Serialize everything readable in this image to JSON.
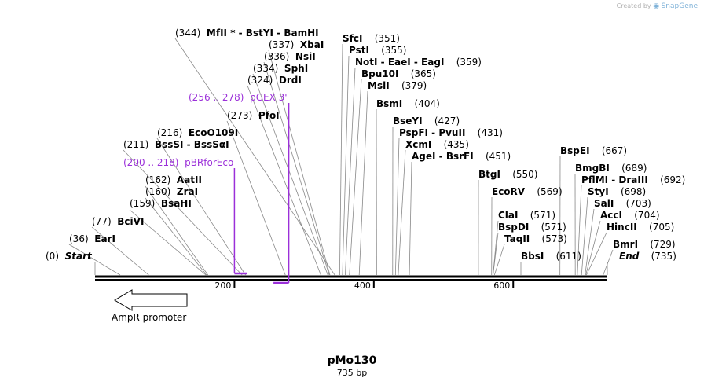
{
  "credit": {
    "prefix": "Created by",
    "brand": "SnapGene",
    "icon": "snapgene-logo-icon"
  },
  "plasmid": {
    "name": "pMo130",
    "size_label": "735 bp",
    "length": 735
  },
  "ruler": {
    "ticks": [
      {
        "value": 200,
        "label": "200"
      },
      {
        "value": 400,
        "label": "400"
      },
      {
        "value": 600,
        "label": "600"
      }
    ]
  },
  "promoter": {
    "name": "AmpR promoter",
    "start": 1,
    "end": 105,
    "direction": "reverse"
  },
  "features": [
    {
      "name": "pGEX 3'",
      "range_label": "(256 .. 278)",
      "start": 256,
      "end": 278,
      "color": "#9b30d9"
    },
    {
      "name": "pBRforEco",
      "range_label": "(200 .. 218)",
      "start": 200,
      "end": 218,
      "color": "#9b30d9"
    }
  ],
  "sites": [
    {
      "label": "Start",
      "pos_label": "(0)",
      "pos": 0,
      "type": "end"
    },
    {
      "label": "EarI",
      "pos_label": "(36)",
      "pos": 36
    },
    {
      "label": "BciVI",
      "pos_label": "(77)",
      "pos": 77
    },
    {
      "label": "BsaHI",
      "pos_label": "(159)",
      "pos": 159
    },
    {
      "label": "ZraI",
      "pos_label": "(160)",
      "pos": 160
    },
    {
      "label": "AatII",
      "pos_label": "(162)",
      "pos": 162
    },
    {
      "label": "BssSI  -  BssSαI",
      "pos_label": "(211)",
      "pos": 211
    },
    {
      "label": "EcoO109I",
      "pos_label": "(216)",
      "pos": 216
    },
    {
      "label": "PfoI",
      "pos_label": "(273)",
      "pos": 273
    },
    {
      "label": "DrdI",
      "pos_label": "(324)",
      "pos": 324
    },
    {
      "label": "SphI",
      "pos_label": "(334)",
      "pos": 334
    },
    {
      "label": "NsiI",
      "pos_label": "(336)",
      "pos": 336
    },
    {
      "label": "XbaI",
      "pos_label": "(337)",
      "pos": 337
    },
    {
      "label": "MfII *  -  BstYI   -  BamHI",
      "pos_label": "(344)",
      "pos": 344
    },
    {
      "label": "SfcI",
      "pos_label": "(351)",
      "pos": 351
    },
    {
      "label": "PstI",
      "pos_label": "(355)",
      "pos": 355
    },
    {
      "label": "NotI  -  EaeI   -  EagI",
      "pos_label": "(359)",
      "pos": 359
    },
    {
      "label": "Bpu10I",
      "pos_label": "(365)",
      "pos": 365
    },
    {
      "label": "MslI",
      "pos_label": "(379)",
      "pos": 379
    },
    {
      "label": "BsmI",
      "pos_label": "(404)",
      "pos": 404
    },
    {
      "label": "BseYI",
      "pos_label": "(427)",
      "pos": 427
    },
    {
      "label": "PspFI  -  PvuII",
      "pos_label": "(431)",
      "pos": 431
    },
    {
      "label": "XcmI",
      "pos_label": "(435)",
      "pos": 435
    },
    {
      "label": "AgeI  -  BsrFI",
      "pos_label": "(451)",
      "pos": 451
    },
    {
      "label": "BtgI",
      "pos_label": "(550)",
      "pos": 550
    },
    {
      "label": "EcoRV",
      "pos_label": "(569)",
      "pos": 569
    },
    {
      "label": "ClaI",
      "pos_label": "(571)",
      "pos": 571
    },
    {
      "label": "BspDI",
      "pos_label": "(571)",
      "pos": 571
    },
    {
      "label": "TaqII",
      "pos_label": "(573)",
      "pos": 573
    },
    {
      "label": "BbsI",
      "pos_label": "(611)",
      "pos": 611
    },
    {
      "label": "BspEI",
      "pos_label": "(667)",
      "pos": 667
    },
    {
      "label": "BmgBI",
      "pos_label": "(689)",
      "pos": 689
    },
    {
      "label": "PflMI  -  DraIII",
      "pos_label": "(692)",
      "pos": 692
    },
    {
      "label": "StyI",
      "pos_label": "(698)",
      "pos": 698
    },
    {
      "label": "SalI",
      "pos_label": "(703)",
      "pos": 703
    },
    {
      "label": "AccI",
      "pos_label": "(704)",
      "pos": 704
    },
    {
      "label": "HincII",
      "pos_label": "(705)",
      "pos": 705
    },
    {
      "label": "BmrI",
      "pos_label": "(729)",
      "pos": 729
    },
    {
      "label": "End",
      "pos_label": "(735)",
      "pos": 735,
      "type": "end"
    }
  ]
}
